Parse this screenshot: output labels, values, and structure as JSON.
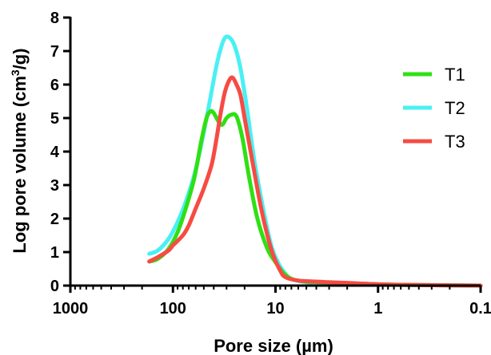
{
  "chart_data": {
    "type": "line",
    "xlabel": "Pore size (µm)",
    "ylabel_parts": {
      "before": "Log pore volume (cm",
      "sup": "3",
      "after": "/g)"
    },
    "x_scale": "log",
    "x_reversed": true,
    "xlim": [
      1000,
      0.1
    ],
    "ylim": [
      0,
      8
    ],
    "x_ticks": [
      {
        "value": 1000,
        "label": "1000"
      },
      {
        "value": 100,
        "label": "100"
      },
      {
        "value": 10,
        "label": "10"
      },
      {
        "value": 1,
        "label": "1"
      },
      {
        "value": 0.1,
        "label": "0.1"
      }
    ],
    "y_ticks": [
      {
        "value": 0,
        "label": "0"
      },
      {
        "value": 1,
        "label": "1"
      },
      {
        "value": 2,
        "label": "2"
      },
      {
        "value": 3,
        "label": "3"
      },
      {
        "value": 4,
        "label": "4"
      },
      {
        "value": 5,
        "label": "5"
      },
      {
        "value": 6,
        "label": "6"
      },
      {
        "value": 7,
        "label": "7"
      },
      {
        "value": 8,
        "label": "8"
      }
    ],
    "grid": false,
    "legend_position": "right",
    "series": [
      {
        "name": "T1",
        "color": "#2fe014",
        "points": [
          [
            170,
            0.72
          ],
          [
            140,
            0.8
          ],
          [
            110,
            1.1
          ],
          [
            90,
            1.6
          ],
          [
            75,
            2.3
          ],
          [
            62,
            3.2
          ],
          [
            53,
            4.3
          ],
          [
            47,
            5.0
          ],
          [
            43,
            5.2
          ],
          [
            40,
            5.15
          ],
          [
            36,
            4.9
          ],
          [
            33,
            4.8
          ],
          [
            30,
            5.0
          ],
          [
            27,
            5.1
          ],
          [
            24,
            5.05
          ],
          [
            21,
            4.4
          ],
          [
            18,
            3.2
          ],
          [
            15,
            2.0
          ],
          [
            12,
            1.1
          ],
          [
            10,
            0.7
          ],
          [
            8.5,
            0.4
          ],
          [
            7,
            0.2
          ],
          [
            6,
            0.15
          ],
          [
            5,
            0.12
          ],
          [
            3,
            0.09
          ],
          [
            2,
            0.07
          ],
          [
            1,
            0.04
          ],
          [
            0.5,
            0.02
          ],
          [
            0.1,
            0.0
          ]
        ]
      },
      {
        "name": "T2",
        "color": "#49f0f4",
        "points": [
          [
            170,
            0.95
          ],
          [
            140,
            1.05
          ],
          [
            110,
            1.4
          ],
          [
            90,
            1.9
          ],
          [
            75,
            2.5
          ],
          [
            62,
            3.3
          ],
          [
            53,
            4.2
          ],
          [
            45,
            5.3
          ],
          [
            38,
            6.5
          ],
          [
            34,
            7.1
          ],
          [
            31,
            7.4
          ],
          [
            28,
            7.4
          ],
          [
            25,
            7.15
          ],
          [
            22,
            6.5
          ],
          [
            19,
            5.3
          ],
          [
            16,
            3.7
          ],
          [
            13,
            2.2
          ],
          [
            11,
            1.2
          ],
          [
            9.5,
            0.7
          ],
          [
            8,
            0.35
          ],
          [
            7,
            0.2
          ],
          [
            5,
            0.1
          ],
          [
            3,
            0.07
          ],
          [
            1,
            0.03
          ],
          [
            0.5,
            0.02
          ],
          [
            0.1,
            0.0
          ]
        ]
      },
      {
        "name": "T3",
        "color": "#f64b43",
        "points": [
          [
            170,
            0.72
          ],
          [
            140,
            0.85
          ],
          [
            110,
            1.05
          ],
          [
            100,
            1.2
          ],
          [
            80,
            1.5
          ],
          [
            70,
            1.8
          ],
          [
            60,
            2.3
          ],
          [
            50,
            2.9
          ],
          [
            42,
            3.6
          ],
          [
            38,
            4.3
          ],
          [
            34,
            5.2
          ],
          [
            31,
            5.8
          ],
          [
            28,
            6.15
          ],
          [
            26,
            6.2
          ],
          [
            24,
            6.0
          ],
          [
            22,
            5.7
          ],
          [
            20,
            5.0
          ],
          [
            17,
            3.8
          ],
          [
            14,
            2.4
          ],
          [
            12,
            1.5
          ],
          [
            10.5,
            0.9
          ],
          [
            9,
            0.45
          ],
          [
            8,
            0.25
          ],
          [
            6,
            0.15
          ],
          [
            4,
            0.12
          ],
          [
            3,
            0.1
          ],
          [
            2,
            0.08
          ],
          [
            1,
            0.04
          ],
          [
            0.5,
            0.02
          ],
          [
            0.1,
            0.0
          ]
        ]
      }
    ]
  }
}
